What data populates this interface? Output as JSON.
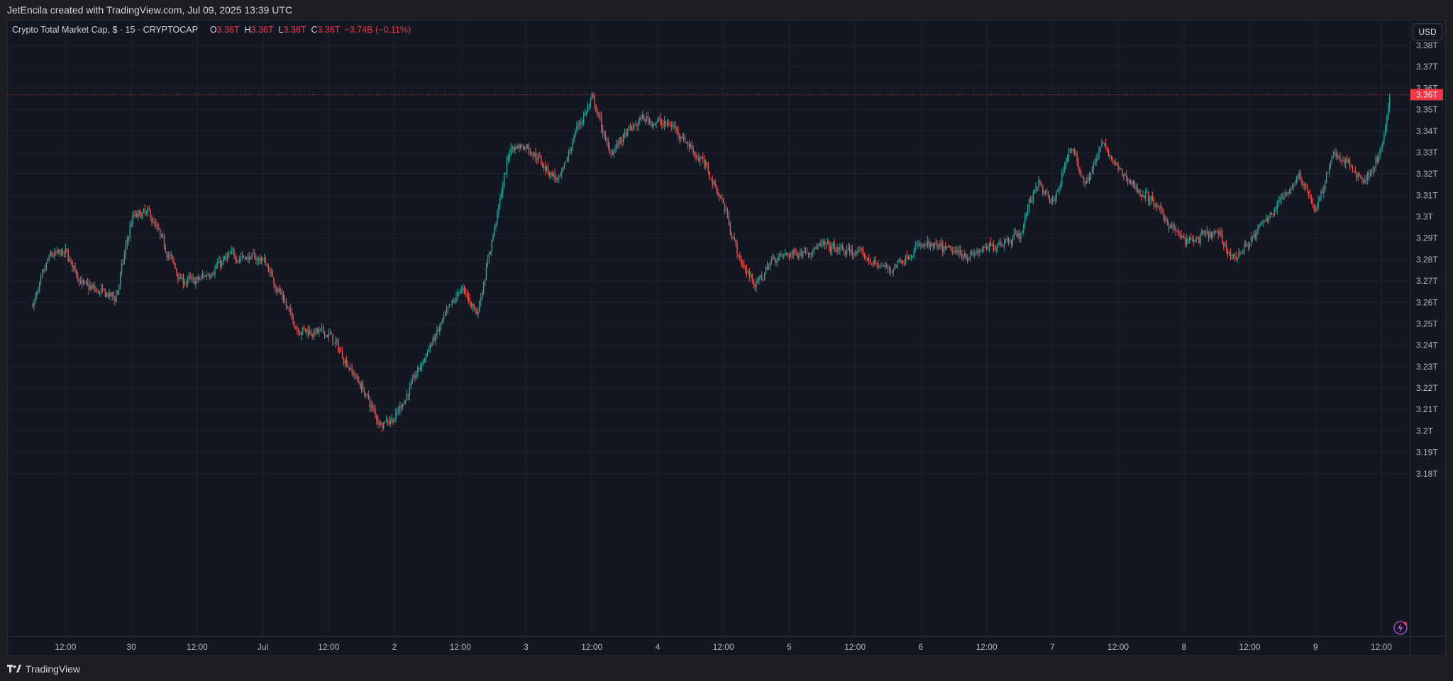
{
  "header": {
    "credit": "JetEncila created with TradingView.com, Jul 09, 2025 13:39 UTC"
  },
  "legend": {
    "symbol": "Crypto Total Market Cap, $ · 15 · CRYPTOCAP",
    "o_label": "O",
    "o_value": "3.36T",
    "h_label": "H",
    "h_value": "3.36T",
    "l_label": "L",
    "l_value": "3.36T",
    "c_label": "C",
    "c_value": "3.36T",
    "change": "−3.74B (−0.11%)"
  },
  "price_axis": {
    "currency_button": "USD",
    "current_price": "3.36T",
    "ticks": [
      "3.38T",
      "3.37T",
      "3.36T",
      "3.35T",
      "3.34T",
      "3.33T",
      "3.32T",
      "3.31T",
      "3.3T",
      "3.29T",
      "3.28T",
      "3.27T",
      "3.26T",
      "3.25T",
      "3.24T",
      "3.23T",
      "3.22T",
      "3.21T",
      "3.2T",
      "3.19T",
      "3.18T"
    ]
  },
  "time_axis": {
    "ticks": [
      "12:00",
      "30",
      "12:00",
      "Jul",
      "12:00",
      "2",
      "12:00",
      "3",
      "12:00",
      "4",
      "12:00",
      "5",
      "12:00",
      "6",
      "12:00",
      "7",
      "12:00",
      "8",
      "12:00",
      "9",
      "12:00"
    ]
  },
  "footer": {
    "brand": "TradingView"
  },
  "colors": {
    "up": "#26a69a",
    "down": "#ef5350",
    "background": "#131722",
    "grid": "#1f2330",
    "price_line": "#f23645"
  },
  "icons": {
    "flash": "lightning-icon",
    "logo": "tradingview-logo-icon"
  },
  "chart_data": {
    "type": "candlestick",
    "title": "Crypto Total Market Cap, $ · 15 · CRYPTOCAP",
    "interval": "15",
    "ylim": [
      3.175,
      3.385
    ],
    "y_unit": "T USD",
    "current_price": 3.357,
    "x_range": [
      "Jun 29 06:00",
      "Jul 9 13:30"
    ],
    "path_points": [
      [
        "Jun 29 06:00",
        3.259
      ],
      [
        "Jun 29 09:00",
        3.282
      ],
      [
        "Jun 29 12:00",
        3.283
      ],
      [
        "Jun 29 15:00",
        3.268
      ],
      [
        "Jun 29 21:00",
        3.262
      ],
      [
        "Jun 30 00:00",
        3.3
      ],
      [
        "Jun 30 03:00",
        3.302
      ],
      [
        "Jun 30 09:00",
        3.27
      ],
      [
        "Jun 30 12:00",
        3.27
      ],
      [
        "Jun 30 18:00",
        3.282
      ],
      [
        "Jul 1 00:00",
        3.28
      ],
      [
        "Jul 1 06:00",
        3.248
      ],
      [
        "Jul 1 12:00",
        3.245
      ],
      [
        "Jul 1 18:00",
        3.22
      ],
      [
        "Jul 1 21:00",
        3.204
      ],
      [
        "Jul 2 00:00",
        3.206
      ],
      [
        "Jul 2 06:00",
        3.238
      ],
      [
        "Jul 2 12:00",
        3.267
      ],
      [
        "Jul 2 15:00",
        3.255
      ],
      [
        "Jul 2 21:00",
        3.333
      ],
      [
        "Jul 3 00:00",
        3.333
      ],
      [
        "Jul 3 06:00",
        3.316
      ],
      [
        "Jul 3 09:00",
        3.341
      ],
      [
        "Jul 3 12:00",
        3.355
      ],
      [
        "Jul 3 15:00",
        3.33
      ],
      [
        "Jul 3 21:00",
        3.346
      ],
      [
        "Jul 4 03:00",
        3.342
      ],
      [
        "Jul 4 09:00",
        3.322
      ],
      [
        "Jul 4 12:00",
        3.305
      ],
      [
        "Jul 4 15:00",
        3.278
      ],
      [
        "Jul 4 18:00",
        3.268
      ],
      [
        "Jul 4 21:00",
        3.281
      ],
      [
        "Jul 5 06:00",
        3.286
      ],
      [
        "Jul 5 12:00",
        3.283
      ],
      [
        "Jul 5 18:00",
        3.275
      ],
      [
        "Jul 6 00:00",
        3.287
      ],
      [
        "Jul 6 09:00",
        3.282
      ],
      [
        "Jul 6 18:00",
        3.292
      ],
      [
        "Jul 6 21:00",
        3.317
      ],
      [
        "Jul 7 00:00",
        3.305
      ],
      [
        "Jul 7 03:00",
        3.333
      ],
      [
        "Jul 7 06:00",
        3.316
      ],
      [
        "Jul 7 09:00",
        3.334
      ],
      [
        "Jul 7 12:00",
        3.321
      ],
      [
        "Jul 7 18:00",
        3.307
      ],
      [
        "Jul 8 00:00",
        3.288
      ],
      [
        "Jul 8 06:00",
        3.292
      ],
      [
        "Jul 8 09:00",
        3.28
      ],
      [
        "Jul 8 15:00",
        3.299
      ],
      [
        "Jul 8 21:00",
        3.32
      ],
      [
        "Jul 9 00:00",
        3.302
      ],
      [
        "Jul 9 03:00",
        3.33
      ],
      [
        "Jul 9 09:00",
        3.317
      ],
      [
        "Jul 9 12:00",
        3.332
      ],
      [
        "Jul 9 13:30",
        3.357
      ]
    ]
  }
}
